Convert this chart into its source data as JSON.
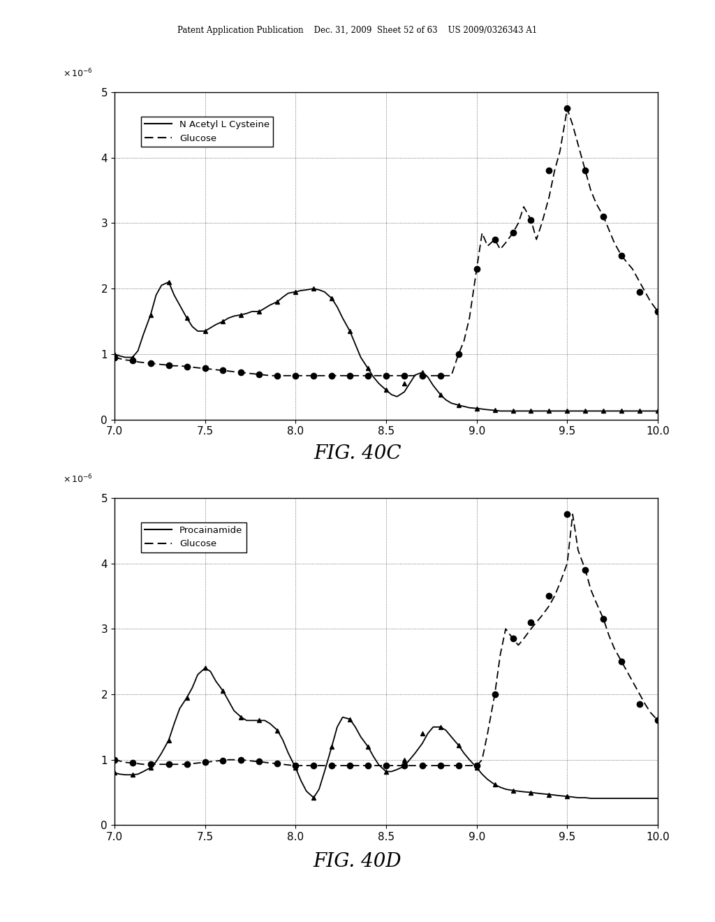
{
  "header_text": "Patent Application Publication    Dec. 31, 2009  Sheet 52 of 63    US 2009/0326343 A1",
  "fig_label_top": "FIG. 40C",
  "fig_label_bottom": "FIG. 40D",
  "xlim": [
    7,
    10
  ],
  "ylim": [
    0,
    5
  ],
  "yticks": [
    0,
    1,
    2,
    3,
    4,
    5
  ],
  "xticks": [
    7,
    7.5,
    8,
    8.5,
    9,
    9.5,
    10
  ],
  "background_color": "#ffffff",
  "legend_top": [
    "N Acetyl L Cysteine",
    "Glucose"
  ],
  "legend_bottom": [
    "Procainamide",
    "Glucose"
  ],
  "top_solid_x": [
    7.0,
    7.03,
    7.06,
    7.1,
    7.13,
    7.16,
    7.2,
    7.23,
    7.26,
    7.3,
    7.33,
    7.36,
    7.4,
    7.43,
    7.46,
    7.5,
    7.53,
    7.56,
    7.6,
    7.63,
    7.66,
    7.7,
    7.73,
    7.76,
    7.8,
    7.83,
    7.86,
    7.9,
    7.93,
    7.96,
    8.0,
    8.03,
    8.06,
    8.1,
    8.13,
    8.16,
    8.2,
    8.23,
    8.26,
    8.3,
    8.33,
    8.36,
    8.4,
    8.43,
    8.46,
    8.5,
    8.53,
    8.56,
    8.6,
    8.63,
    8.66,
    8.7,
    8.73,
    8.76,
    8.8,
    8.83,
    8.86,
    8.9,
    8.93,
    8.96,
    9.0,
    9.03,
    9.06,
    9.1,
    9.13,
    9.16,
    9.2,
    9.23,
    9.26,
    9.3,
    9.33,
    9.36,
    9.4,
    9.43,
    9.46,
    9.5,
    9.53,
    9.56,
    9.6,
    9.63,
    9.66,
    9.7,
    9.73,
    9.76,
    9.8,
    9.83,
    9.86,
    9.9,
    9.93,
    9.96,
    10.0
  ],
  "top_solid_y": [
    1.0,
    0.97,
    0.95,
    0.95,
    1.05,
    1.3,
    1.6,
    1.9,
    2.05,
    2.1,
    1.9,
    1.75,
    1.55,
    1.42,
    1.35,
    1.35,
    1.4,
    1.45,
    1.5,
    1.55,
    1.58,
    1.6,
    1.62,
    1.65,
    1.65,
    1.7,
    1.75,
    1.8,
    1.87,
    1.93,
    1.95,
    1.97,
    1.98,
    2.0,
    1.98,
    1.95,
    1.85,
    1.72,
    1.55,
    1.35,
    1.15,
    0.95,
    0.78,
    0.65,
    0.55,
    0.45,
    0.38,
    0.35,
    0.42,
    0.55,
    0.68,
    0.72,
    0.65,
    0.52,
    0.38,
    0.3,
    0.25,
    0.22,
    0.2,
    0.18,
    0.17,
    0.16,
    0.15,
    0.14,
    0.13,
    0.13,
    0.13,
    0.13,
    0.13,
    0.13,
    0.13,
    0.13,
    0.13,
    0.13,
    0.13,
    0.13,
    0.13,
    0.13,
    0.13,
    0.13,
    0.13,
    0.13,
    0.13,
    0.13,
    0.13,
    0.13,
    0.13,
    0.13,
    0.13,
    0.13,
    0.13
  ],
  "top_solid_markers_x": [
    7.0,
    7.1,
    7.2,
    7.3,
    7.4,
    7.5,
    7.6,
    7.7,
    7.8,
    7.9,
    8.0,
    8.1,
    8.2,
    8.3,
    8.4,
    8.5,
    8.6,
    8.7,
    8.8,
    8.9,
    9.0,
    9.1,
    9.2,
    9.3,
    9.4,
    9.5,
    9.6,
    9.7,
    9.8,
    9.9,
    10.0
  ],
  "top_solid_markers_y": [
    1.0,
    0.95,
    1.6,
    2.1,
    1.55,
    1.35,
    1.5,
    1.6,
    1.65,
    1.8,
    1.95,
    2.0,
    1.85,
    1.35,
    0.78,
    0.45,
    0.55,
    0.72,
    0.38,
    0.22,
    0.17,
    0.14,
    0.13,
    0.13,
    0.13,
    0.13,
    0.13,
    0.13,
    0.13,
    0.13,
    0.13
  ],
  "top_dashed_x": [
    7.0,
    7.03,
    7.06,
    7.1,
    7.13,
    7.16,
    7.2,
    7.23,
    7.26,
    7.3,
    7.33,
    7.36,
    7.4,
    7.43,
    7.46,
    7.5,
    7.53,
    7.56,
    7.6,
    7.63,
    7.66,
    7.7,
    7.73,
    7.76,
    7.8,
    7.83,
    7.86,
    7.9,
    7.93,
    7.96,
    8.0,
    8.03,
    8.06,
    8.1,
    8.13,
    8.16,
    8.2,
    8.23,
    8.26,
    8.3,
    8.33,
    8.36,
    8.4,
    8.43,
    8.46,
    8.5,
    8.53,
    8.56,
    8.6,
    8.63,
    8.66,
    8.7,
    8.73,
    8.76,
    8.8,
    8.83,
    8.86,
    8.9,
    8.93,
    8.96,
    9.0,
    9.03,
    9.06,
    9.1,
    9.13,
    9.16,
    9.2,
    9.23,
    9.26,
    9.3,
    9.33,
    9.36,
    9.4,
    9.43,
    9.46,
    9.5,
    9.53,
    9.56,
    9.6,
    9.63,
    9.66,
    9.7,
    9.73,
    9.76,
    9.8,
    9.83,
    9.86,
    9.9,
    9.93,
    9.96,
    10.0
  ],
  "top_dashed_y": [
    0.95,
    0.93,
    0.91,
    0.9,
    0.88,
    0.87,
    0.86,
    0.85,
    0.84,
    0.83,
    0.82,
    0.82,
    0.81,
    0.8,
    0.79,
    0.78,
    0.77,
    0.76,
    0.75,
    0.74,
    0.73,
    0.72,
    0.71,
    0.7,
    0.69,
    0.68,
    0.67,
    0.67,
    0.67,
    0.67,
    0.67,
    0.67,
    0.67,
    0.67,
    0.67,
    0.67,
    0.67,
    0.67,
    0.67,
    0.67,
    0.67,
    0.67,
    0.67,
    0.67,
    0.67,
    0.67,
    0.67,
    0.67,
    0.67,
    0.67,
    0.67,
    0.67,
    0.67,
    0.67,
    0.67,
    0.67,
    0.67,
    1.0,
    1.2,
    1.55,
    2.3,
    2.85,
    2.65,
    2.75,
    2.6,
    2.7,
    2.85,
    3.0,
    3.25,
    3.05,
    2.75,
    3.0,
    3.4,
    3.8,
    4.1,
    4.75,
    4.5,
    4.2,
    3.8,
    3.5,
    3.3,
    3.1,
    2.9,
    2.7,
    2.5,
    2.4,
    2.3,
    2.1,
    1.95,
    1.8,
    1.65
  ],
  "top_dashed_markers_x": [
    7.0,
    7.1,
    7.2,
    7.3,
    7.4,
    7.5,
    7.6,
    7.7,
    7.8,
    7.9,
    8.0,
    8.1,
    8.2,
    8.3,
    8.4,
    8.5,
    8.6,
    8.7,
    8.8,
    8.9,
    9.0,
    9.1,
    9.2,
    9.3,
    9.4,
    9.5,
    9.6,
    9.7,
    9.8,
    9.9,
    10.0
  ],
  "top_dashed_markers_y": [
    0.95,
    0.9,
    0.86,
    0.83,
    0.81,
    0.78,
    0.75,
    0.72,
    0.69,
    0.67,
    0.67,
    0.67,
    0.67,
    0.67,
    0.67,
    0.67,
    0.67,
    0.67,
    0.67,
    1.0,
    2.3,
    2.75,
    2.85,
    3.05,
    3.8,
    4.75,
    3.8,
    3.1,
    2.5,
    1.95,
    1.65
  ],
  "bot_solid_x": [
    7.0,
    7.03,
    7.06,
    7.1,
    7.13,
    7.16,
    7.2,
    7.23,
    7.26,
    7.3,
    7.33,
    7.36,
    7.4,
    7.43,
    7.46,
    7.5,
    7.53,
    7.56,
    7.6,
    7.63,
    7.66,
    7.7,
    7.73,
    7.76,
    7.8,
    7.83,
    7.86,
    7.9,
    7.93,
    7.96,
    8.0,
    8.03,
    8.06,
    8.1,
    8.13,
    8.16,
    8.2,
    8.23,
    8.26,
    8.3,
    8.33,
    8.36,
    8.4,
    8.43,
    8.46,
    8.5,
    8.53,
    8.56,
    8.6,
    8.63,
    8.66,
    8.7,
    8.73,
    8.76,
    8.8,
    8.83,
    8.86,
    8.9,
    8.93,
    8.96,
    9.0,
    9.03,
    9.06,
    9.1,
    9.13,
    9.16,
    9.2,
    9.23,
    9.26,
    9.3,
    9.33,
    9.36,
    9.4,
    9.43,
    9.46,
    9.5,
    9.53,
    9.56,
    9.6,
    9.63,
    9.66,
    9.7,
    9.73,
    9.76,
    9.8,
    9.83,
    9.86,
    9.9,
    9.93,
    9.96,
    10.0
  ],
  "bot_solid_y": [
    0.8,
    0.78,
    0.77,
    0.77,
    0.78,
    0.82,
    0.88,
    0.97,
    1.1,
    1.3,
    1.55,
    1.78,
    1.95,
    2.1,
    2.3,
    2.4,
    2.35,
    2.2,
    2.05,
    1.9,
    1.75,
    1.65,
    1.6,
    1.6,
    1.6,
    1.6,
    1.55,
    1.45,
    1.3,
    1.1,
    0.88,
    0.68,
    0.52,
    0.42,
    0.55,
    0.82,
    1.2,
    1.5,
    1.65,
    1.62,
    1.5,
    1.35,
    1.2,
    1.05,
    0.92,
    0.82,
    0.82,
    0.85,
    0.9,
    1.0,
    1.1,
    1.25,
    1.4,
    1.5,
    1.5,
    1.45,
    1.35,
    1.22,
    1.1,
    1.0,
    0.88,
    0.78,
    0.7,
    0.62,
    0.58,
    0.55,
    0.53,
    0.52,
    0.51,
    0.5,
    0.49,
    0.48,
    0.47,
    0.46,
    0.45,
    0.44,
    0.43,
    0.42,
    0.42,
    0.41,
    0.41,
    0.41,
    0.41,
    0.41,
    0.41,
    0.41,
    0.41,
    0.41,
    0.41,
    0.41,
    0.41
  ],
  "bot_solid_markers_x": [
    7.0,
    7.1,
    7.2,
    7.3,
    7.4,
    7.5,
    7.6,
    7.7,
    7.8,
    7.9,
    8.0,
    8.1,
    8.2,
    8.3,
    8.4,
    8.5,
    8.6,
    8.7,
    8.8,
    8.9,
    9.0,
    9.1,
    9.2,
    9.3,
    9.4,
    9.5
  ],
  "bot_solid_markers_y": [
    0.8,
    0.77,
    0.88,
    1.3,
    1.95,
    2.4,
    2.05,
    1.65,
    1.6,
    1.45,
    0.88,
    0.42,
    1.2,
    1.62,
    1.2,
    0.82,
    1.0,
    1.4,
    1.5,
    1.22,
    0.88,
    0.62,
    0.53,
    0.5,
    0.46,
    0.44
  ],
  "bot_dashed_x": [
    7.0,
    7.03,
    7.06,
    7.1,
    7.13,
    7.16,
    7.2,
    7.23,
    7.26,
    7.3,
    7.33,
    7.36,
    7.4,
    7.43,
    7.46,
    7.5,
    7.53,
    7.56,
    7.6,
    7.63,
    7.66,
    7.7,
    7.73,
    7.76,
    7.8,
    7.83,
    7.86,
    7.9,
    7.93,
    7.96,
    8.0,
    8.03,
    8.06,
    8.1,
    8.13,
    8.16,
    8.2,
    8.23,
    8.26,
    8.3,
    8.33,
    8.36,
    8.4,
    8.43,
    8.46,
    8.5,
    8.53,
    8.56,
    8.6,
    8.63,
    8.66,
    8.7,
    8.73,
    8.76,
    8.8,
    8.83,
    8.86,
    8.9,
    8.93,
    8.96,
    9.0,
    9.03,
    9.06,
    9.1,
    9.13,
    9.16,
    9.2,
    9.23,
    9.26,
    9.3,
    9.33,
    9.36,
    9.4,
    9.43,
    9.46,
    9.5,
    9.53,
    9.56,
    9.6,
    9.63,
    9.66,
    9.7,
    9.73,
    9.76,
    9.8,
    9.83,
    9.86,
    9.9,
    9.93,
    9.96,
    10.0
  ],
  "bot_dashed_y": [
    1.0,
    0.98,
    0.96,
    0.95,
    0.94,
    0.93,
    0.93,
    0.93,
    0.93,
    0.93,
    0.93,
    0.93,
    0.93,
    0.94,
    0.95,
    0.96,
    0.97,
    0.98,
    0.99,
    1.0,
    1.0,
    1.0,
    0.99,
    0.98,
    0.97,
    0.96,
    0.95,
    0.94,
    0.93,
    0.92,
    0.91,
    0.91,
    0.91,
    0.91,
    0.91,
    0.91,
    0.91,
    0.91,
    0.91,
    0.91,
    0.91,
    0.91,
    0.91,
    0.91,
    0.91,
    0.91,
    0.91,
    0.91,
    0.91,
    0.91,
    0.91,
    0.91,
    0.91,
    0.91,
    0.91,
    0.91,
    0.91,
    0.91,
    0.91,
    0.91,
    0.91,
    1.0,
    1.4,
    2.0,
    2.6,
    3.0,
    2.85,
    2.75,
    2.85,
    3.0,
    3.1,
    3.2,
    3.35,
    3.5,
    3.7,
    4.0,
    4.75,
    4.2,
    3.9,
    3.6,
    3.4,
    3.15,
    2.9,
    2.7,
    2.5,
    2.35,
    2.2,
    2.0,
    1.85,
    1.72,
    1.6
  ],
  "bot_dashed_markers_x": [
    7.0,
    7.1,
    7.2,
    7.3,
    7.4,
    7.5,
    7.6,
    7.7,
    7.8,
    7.9,
    8.0,
    8.1,
    8.2,
    8.3,
    8.4,
    8.5,
    8.6,
    8.7,
    8.8,
    8.9,
    9.0,
    9.1,
    9.2,
    9.3,
    9.4,
    9.5,
    9.6,
    9.7,
    9.8,
    9.9,
    10.0
  ],
  "bot_dashed_markers_y": [
    1.0,
    0.95,
    0.93,
    0.93,
    0.93,
    0.96,
    0.99,
    1.0,
    0.97,
    0.94,
    0.91,
    0.91,
    0.91,
    0.91,
    0.91,
    0.91,
    0.91,
    0.91,
    0.91,
    0.91,
    0.91,
    2.0,
    2.85,
    3.1,
    3.5,
    4.75,
    3.9,
    3.15,
    2.5,
    1.85,
    1.6
  ]
}
